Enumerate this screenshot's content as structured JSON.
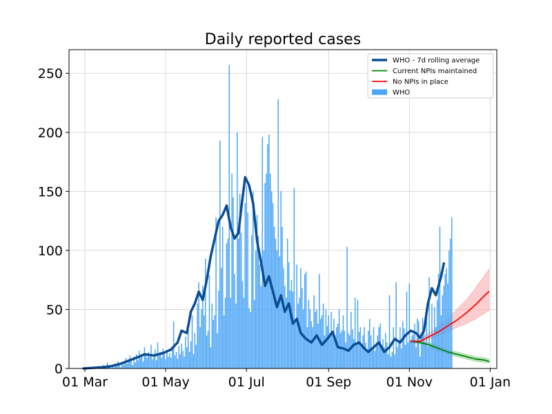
{
  "chart_data": {
    "type": "bar",
    "title": "Daily reported cases",
    "xlabel": "",
    "ylabel": "",
    "x_start_date": "2020-02-29",
    "xlim": [
      "2020-02-18",
      "2021-01-06"
    ],
    "ylim": [
      0,
      270
    ],
    "grid": true,
    "legend_position": "top-right",
    "x_ticks": [
      "01 Mar",
      "01 May",
      "01 Jul",
      "01 Sep",
      "01 Nov",
      "01 Jan"
    ],
    "y_ticks": [
      0,
      50,
      100,
      150,
      200,
      250
    ],
    "legend": [
      {
        "label": "WHO - 7d rolling average",
        "color": "#0b4c93",
        "kind": "thick-line"
      },
      {
        "label": "Current NPIs maintained",
        "color": "#008000",
        "kind": "line"
      },
      {
        "label": "No NPIs in place",
        "color": "#ff0000",
        "kind": "line"
      },
      {
        "label": "WHO",
        "color": "#4da6f5",
        "kind": "bar"
      }
    ],
    "series": [
      {
        "name": "WHO",
        "kind": "bar",
        "color": "#4da6f5",
        "x_start": "2020-02-29",
        "values": [
          0,
          0,
          0,
          0,
          0,
          0,
          0,
          1,
          0,
          0,
          1,
          2,
          1,
          0,
          2,
          3,
          1,
          2,
          5,
          1,
          2,
          0,
          3,
          1,
          4,
          2,
          6,
          3,
          1,
          4,
          3,
          5,
          9,
          4,
          7,
          11,
          8,
          3,
          10,
          5,
          12,
          7,
          15,
          9,
          11,
          6,
          18,
          13,
          9,
          14,
          10,
          20,
          8,
          12,
          16,
          7,
          22,
          11,
          14,
          9,
          17,
          12,
          8,
          15,
          10,
          13,
          9,
          16,
          40,
          11,
          14,
          8,
          19,
          12,
          21,
          15,
          10,
          27,
          18,
          34,
          14,
          23,
          45,
          12,
          30,
          20,
          55,
          73,
          35,
          50,
          70,
          45,
          93,
          28,
          32,
          79,
          18,
          55,
          41,
          45,
          128,
          30,
          66,
          193,
          85,
          120,
          45,
          60,
          106,
          110,
          257,
          60,
          165,
          145,
          80,
          55,
          200,
          110,
          148,
          115,
          74,
          60,
          140,
          155,
          132,
          51,
          48,
          113,
          150,
          58,
          100,
          130,
          112,
          88,
          70,
          196,
          100,
          157,
          165,
          190,
          198,
          165,
          150,
          140,
          120,
          110,
          100,
          228,
          95,
          150,
          120,
          85,
          70,
          60,
          110,
          90,
          66,
          75,
          65,
          153,
          40,
          88,
          55,
          60,
          85,
          68,
          50,
          80,
          82,
          35,
          58,
          50,
          40,
          35,
          62,
          48,
          50,
          38,
          80,
          42,
          45,
          55,
          28,
          50,
          36,
          45,
          30,
          48,
          32,
          42,
          28,
          35,
          38,
          50,
          30,
          32,
          45,
          32,
          22,
          103,
          30,
          28,
          48,
          33,
          25,
          60,
          22,
          58,
          31,
          35,
          20,
          28,
          35,
          22,
          14,
          32,
          42,
          28,
          18,
          35,
          15,
          22,
          28,
          35,
          38,
          20,
          25,
          18,
          30,
          22,
          12,
          62,
          10,
          14,
          35,
          12,
          73,
          18,
          24,
          35,
          17,
          40,
          34,
          20,
          65,
          22,
          72,
          24,
          28,
          29,
          38,
          18,
          42,
          40,
          10,
          30,
          43,
          35,
          22,
          46,
          18,
          77,
          20,
          55,
          28,
          52,
          35,
          58,
          80,
          120,
          45,
          62,
          70,
          80,
          85,
          72,
          100,
          110,
          128
        ]
      },
      {
        "name": "WHO - 7d rolling average",
        "kind": "line",
        "color": "#0b4c93",
        "points": [
          [
            "2020-02-29",
            0
          ],
          [
            "2020-03-14",
            1
          ],
          [
            "2020-03-21",
            2
          ],
          [
            "2020-03-28",
            4
          ],
          [
            "2020-04-04",
            7
          ],
          [
            "2020-04-11",
            10
          ],
          [
            "2020-04-15",
            12
          ],
          [
            "2020-04-22",
            11
          ],
          [
            "2020-04-29",
            13
          ],
          [
            "2020-05-05",
            16
          ],
          [
            "2020-05-10",
            22
          ],
          [
            "2020-05-13",
            32
          ],
          [
            "2020-05-17",
            30
          ],
          [
            "2020-05-20",
            48
          ],
          [
            "2020-05-23",
            55
          ],
          [
            "2020-05-26",
            65
          ],
          [
            "2020-05-29",
            58
          ],
          [
            "2020-06-01",
            75
          ],
          [
            "2020-06-04",
            95
          ],
          [
            "2020-06-07",
            110
          ],
          [
            "2020-06-10",
            125
          ],
          [
            "2020-06-13",
            130
          ],
          [
            "2020-06-16",
            138
          ],
          [
            "2020-06-19",
            120
          ],
          [
            "2020-06-22",
            110
          ],
          [
            "2020-06-25",
            115
          ],
          [
            "2020-06-27",
            135
          ],
          [
            "2020-06-30",
            162
          ],
          [
            "2020-07-03",
            155
          ],
          [
            "2020-07-06",
            140
          ],
          [
            "2020-07-09",
            108
          ],
          [
            "2020-07-12",
            90
          ],
          [
            "2020-07-15",
            70
          ],
          [
            "2020-07-18",
            78
          ],
          [
            "2020-07-21",
            65
          ],
          [
            "2020-07-24",
            52
          ],
          [
            "2020-07-27",
            62
          ],
          [
            "2020-07-30",
            48
          ],
          [
            "2020-08-02",
            55
          ],
          [
            "2020-08-05",
            38
          ],
          [
            "2020-08-08",
            42
          ],
          [
            "2020-08-11",
            30
          ],
          [
            "2020-08-15",
            25
          ],
          [
            "2020-08-19",
            22
          ],
          [
            "2020-08-23",
            28
          ],
          [
            "2020-08-27",
            20
          ],
          [
            "2020-08-31",
            25
          ],
          [
            "2020-09-04",
            31
          ],
          [
            "2020-09-08",
            18
          ],
          [
            "2020-09-12",
            17
          ],
          [
            "2020-09-16",
            15
          ],
          [
            "2020-09-20",
            20
          ],
          [
            "2020-09-24",
            22
          ],
          [
            "2020-09-28",
            17
          ],
          [
            "2020-10-01",
            14
          ],
          [
            "2020-10-05",
            18
          ],
          [
            "2020-10-09",
            22
          ],
          [
            "2020-10-13",
            14
          ],
          [
            "2020-10-17",
            18
          ],
          [
            "2020-10-21",
            25
          ],
          [
            "2020-10-25",
            22
          ],
          [
            "2020-10-29",
            28
          ],
          [
            "2020-11-02",
            32
          ],
          [
            "2020-11-06",
            30
          ],
          [
            "2020-11-09",
            26
          ],
          [
            "2020-11-12",
            32
          ],
          [
            "2020-11-15",
            55
          ],
          [
            "2020-11-18",
            68
          ],
          [
            "2020-11-21",
            62
          ],
          [
            "2020-11-23",
            70
          ],
          [
            "2020-11-25",
            78
          ],
          [
            "2020-11-27",
            89
          ]
        ]
      },
      {
        "name": "Current NPIs maintained",
        "kind": "line",
        "color": "#008000",
        "band_color": "#8fd08f",
        "points": [
          [
            "2020-11-02",
            23
          ],
          [
            "2020-11-09",
            22
          ],
          [
            "2020-11-16",
            20
          ],
          [
            "2020-11-23",
            17
          ],
          [
            "2020-11-30",
            14
          ],
          [
            "2020-12-07",
            12
          ],
          [
            "2020-12-14",
            10
          ],
          [
            "2020-12-21",
            8
          ],
          [
            "2020-12-28",
            7
          ],
          [
            "2020-12-31",
            6
          ]
        ],
        "lower": [
          22,
          21,
          18,
          15,
          12,
          10,
          8,
          6,
          5,
          4.5
        ],
        "upper": [
          24,
          23,
          22,
          19,
          16,
          14,
          12,
          10,
          9,
          8
        ]
      },
      {
        "name": "No NPIs in place",
        "kind": "line",
        "color": "#ff0000",
        "band_color": "#f7a8a8",
        "points": [
          [
            "2020-11-02",
            23
          ],
          [
            "2020-11-09",
            23
          ],
          [
            "2020-11-16",
            27
          ],
          [
            "2020-11-23",
            31
          ],
          [
            "2020-11-30",
            36
          ],
          [
            "2020-12-07",
            41
          ],
          [
            "2020-12-14",
            47
          ],
          [
            "2020-12-21",
            54
          ],
          [
            "2020-12-28",
            62
          ],
          [
            "2020-12-31",
            65
          ]
        ],
        "lower": [
          22,
          22,
          25,
          28,
          31,
          35,
          38,
          42,
          47,
          49
        ],
        "upper": [
          24,
          25,
          30,
          35,
          42,
          50,
          58,
          68,
          79,
          84
        ]
      }
    ]
  }
}
